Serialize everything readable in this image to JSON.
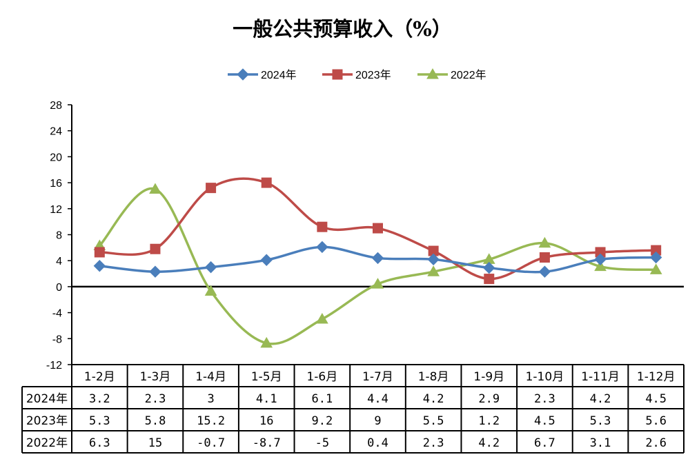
{
  "chart_data": {
    "type": "line",
    "title": "一般公共预算收入（%）",
    "categories": [
      "1-2月",
      "1-3月",
      "1-4月",
      "1-5月",
      "1-6月",
      "1-7月",
      "1-8月",
      "1-9月",
      "1-10月",
      "1-11月",
      "1-12月"
    ],
    "series": [
      {
        "name": "2024年",
        "color": "#4a7ebb",
        "marker": "diamond",
        "values": [
          3.2,
          2.3,
          3,
          4.1,
          6.1,
          4.4,
          4.2,
          2.9,
          2.3,
          4.2,
          4.5
        ],
        "labels": [
          "3.2",
          "2.3",
          "3",
          "4.1",
          "6.1",
          "4.4",
          "4.2",
          "2.9",
          "2.3",
          "4.2",
          "4.5"
        ]
      },
      {
        "name": "2023年",
        "color": "#be4b48",
        "marker": "square",
        "values": [
          5.3,
          5.8,
          15.2,
          16,
          9.2,
          9,
          5.5,
          1.2,
          4.5,
          5.3,
          5.6
        ],
        "labels": [
          "5.3",
          "5.8",
          "15.2",
          "16",
          "9.2",
          "9",
          "5.5",
          "1.2",
          "4.5",
          "5.3",
          "5.6"
        ]
      },
      {
        "name": "2022年",
        "color": "#98b954",
        "marker": "triangle",
        "values": [
          6.3,
          15,
          -0.7,
          -8.7,
          -5,
          0.4,
          2.3,
          4.2,
          6.7,
          3.1,
          2.6
        ],
        "labels": [
          "6.3",
          "15",
          "-0.7",
          "-8.7",
          "-5",
          "0.4",
          "2.3",
          "4.2",
          "6.7",
          "3.1",
          "2.6"
        ]
      }
    ],
    "ylim": [
      -12,
      28
    ],
    "yticks": [
      "28",
      "24",
      "20",
      "16",
      "12",
      "8",
      "4",
      "0",
      "-4",
      "-8",
      "-12"
    ],
    "legend": "top-center",
    "grid": false,
    "data_table": true
  }
}
